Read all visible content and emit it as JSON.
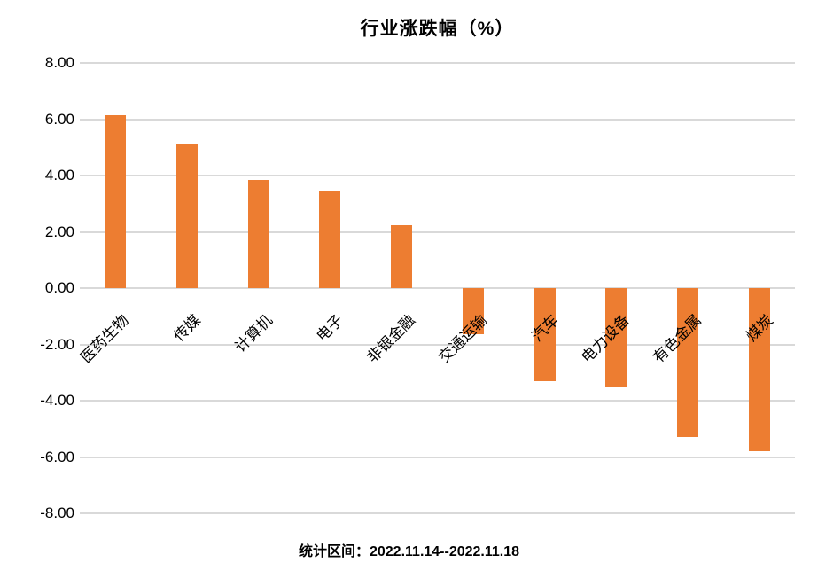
{
  "chart_data": {
    "type": "bar",
    "title": "行业涨跌幅（%）",
    "categories": [
      "医药生物",
      "传媒",
      "计算机",
      "电子",
      "非银金融",
      "交通运输",
      "汽车",
      "电力设备",
      "有色金属",
      "煤炭"
    ],
    "values": [
      6.15,
      5.1,
      3.85,
      3.45,
      2.25,
      -1.65,
      -3.3,
      -3.5,
      -5.3,
      -5.8
    ],
    "ylim": [
      -8,
      8
    ],
    "ytick_step": 2,
    "ytick_labels": [
      "8.00",
      "6.00",
      "4.00",
      "2.00",
      "0.00",
      "-2.00",
      "-4.00",
      "-6.00",
      "-8.00"
    ],
    "grid": true,
    "legend": "none",
    "bar_color": "#ED7D31",
    "gridline_color": "#D9D9D9",
    "text_color": "#000000"
  },
  "caption": {
    "label": "统计区间：",
    "value": "2022.11.14--2022.11.18"
  }
}
